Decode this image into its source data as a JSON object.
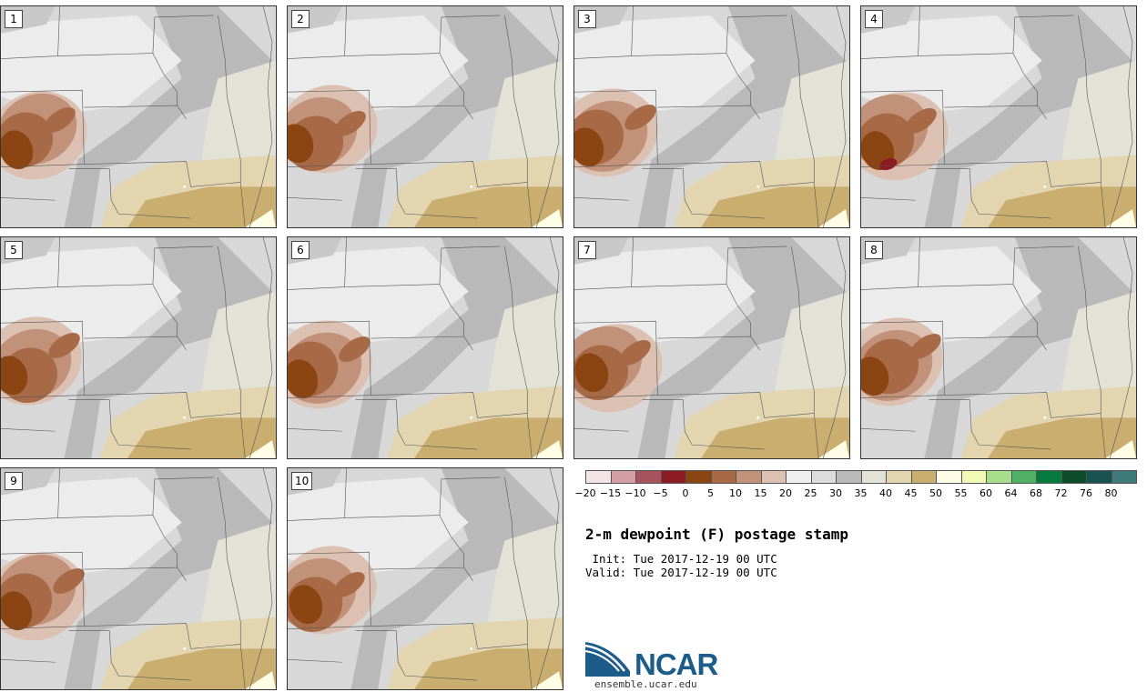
{
  "panels": [
    {
      "label": "1",
      "member": 1
    },
    {
      "label": "2",
      "member": 2
    },
    {
      "label": "3",
      "member": 3
    },
    {
      "label": "4",
      "member": 4
    },
    {
      "label": "5",
      "member": 5
    },
    {
      "label": "6",
      "member": 6
    },
    {
      "label": "7",
      "member": 7
    },
    {
      "label": "8",
      "member": 8
    },
    {
      "label": "9",
      "member": 9
    },
    {
      "label": "10",
      "member": 10
    }
  ],
  "colorbar": {
    "colors": [
      "#f2e4e6",
      "#d49ea7",
      "#a8525d",
      "#8b1a22",
      "#8b4513",
      "#a86a46",
      "#c19179",
      "#dcc0b1",
      "#f0f0f0",
      "#dcdcdc",
      "#b9b9b9",
      "#e2e3d6",
      "#e2d5b0",
      "#c9ae70",
      "#fffde6",
      "#f2f8b6",
      "#a9dd8e",
      "#4faf64",
      "#067a3d",
      "#0c4c2a",
      "#1a5252",
      "#3e7a7a"
    ],
    "ticks": [
      "−20",
      "−15",
      "−10",
      "−5",
      "0",
      "5",
      "10",
      "15",
      "20",
      "25",
      "30",
      "35",
      "40",
      "45",
      "50",
      "55",
      "60",
      "64",
      "68",
      "72",
      "76",
      "80"
    ]
  },
  "title": "2-m dewpoint (F) postage stamp",
  "init": " Init: Tue 2017-12-19 00 UTC",
  "valid": "Valid: Tue 2017-12-19 00 UTC",
  "logo": {
    "text": "NCAR",
    "color": "#1c5c8a"
  },
  "website": "ensemble.ucar.edu"
}
